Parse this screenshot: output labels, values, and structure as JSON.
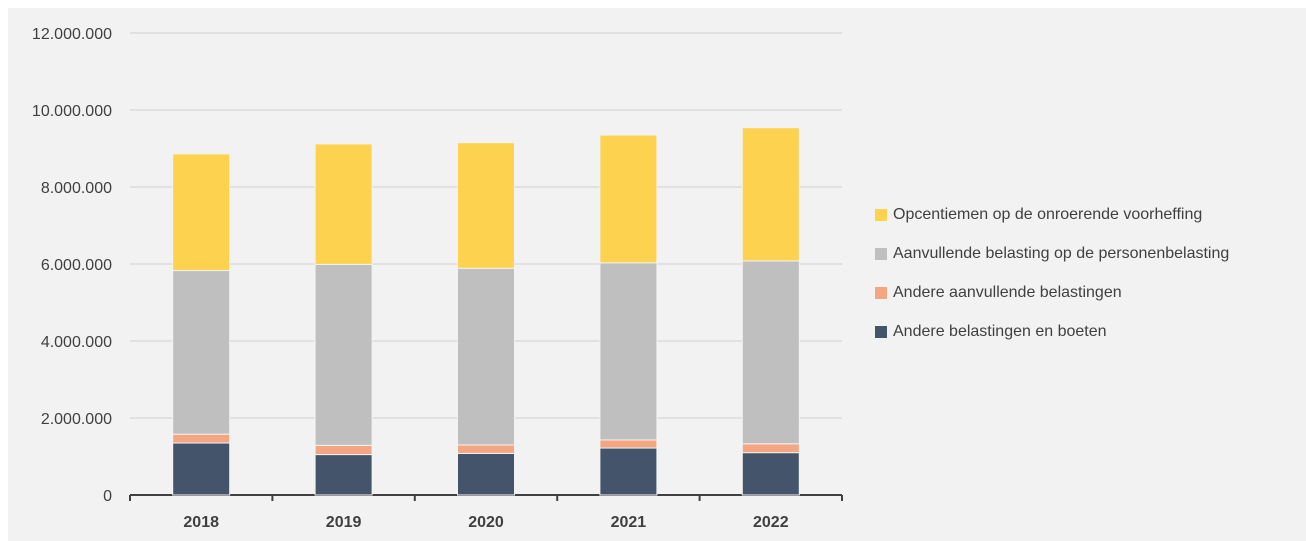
{
  "chart_data": {
    "type": "bar",
    "stacked": true,
    "categories": [
      "2018",
      "2019",
      "2020",
      "2021",
      "2022"
    ],
    "series": [
      {
        "name": "Andere belastingen en boeten",
        "color": "#44546a",
        "values": [
          1350000,
          1050000,
          1080000,
          1220000,
          1100000
        ]
      },
      {
        "name": "Andere aanvullende belastingen",
        "color": "#f4a582",
        "values": [
          230000,
          240000,
          220000,
          210000,
          230000
        ]
      },
      {
        "name": "Aanvullende belasting op de personenbelasting",
        "color": "#bfbfbf",
        "values": [
          4250000,
          4700000,
          4590000,
          4600000,
          4750000
        ]
      },
      {
        "name": "Opcentiemen op de onroerende voorheffing",
        "color": "#fdd24e",
        "values": [
          3030000,
          3130000,
          3260000,
          3320000,
          3460000
        ]
      }
    ],
    "yticks": [
      "0",
      "2.000.000",
      "4.000.000",
      "6.000.000",
      "8.000.000",
      "10.000.000",
      "12.000.000"
    ],
    "ylim": [
      0,
      12000000
    ],
    "grid": true,
    "legend_position": "right",
    "title": "",
    "xlabel": "",
    "ylabel": ""
  }
}
